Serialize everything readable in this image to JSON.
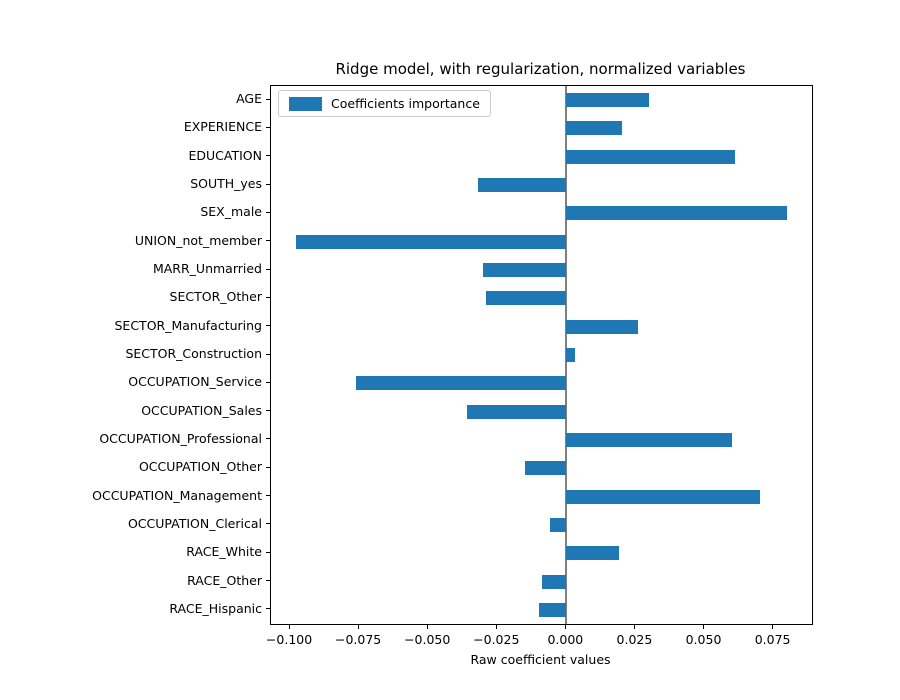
{
  "chart_data": {
    "type": "bar",
    "orientation": "horizontal",
    "title": "Ridge model, with regularization, normalized variables",
    "xlabel": "Raw coefficient values",
    "legend": {
      "label": "Coefficients importance",
      "position": "upper left"
    },
    "categories": [
      "AGE",
      "EXPERIENCE",
      "EDUCATION",
      "SOUTH_yes",
      "SEX_male",
      "UNION_not_member",
      "MARR_Unmarried",
      "SECTOR_Other",
      "SECTOR_Manufacturing",
      "SECTOR_Construction",
      "OCCUPATION_Service",
      "OCCUPATION_Sales",
      "OCCUPATION_Professional",
      "OCCUPATION_Other",
      "OCCUPATION_Management",
      "OCCUPATION_Clerical",
      "RACE_White",
      "RACE_Other",
      "RACE_Hispanic"
    ],
    "values": [
      0.03,
      0.02,
      0.061,
      -0.032,
      0.08,
      -0.098,
      -0.03,
      -0.029,
      0.026,
      0.003,
      -0.076,
      -0.036,
      0.06,
      -0.015,
      0.07,
      -0.006,
      0.019,
      -0.009,
      -0.01
    ],
    "xlim": [
      -0.1069,
      0.0889
    ],
    "xticks": [
      -0.1,
      -0.075,
      -0.05,
      -0.025,
      0.0,
      0.025,
      0.05,
      0.075
    ],
    "xtick_labels": [
      "−0.100",
      "−0.075",
      "−0.050",
      "−0.025",
      "0.000",
      "0.025",
      "0.050",
      "0.075"
    ],
    "grid": false,
    "colors": {
      "bar": "#1f77b4",
      "zero_line": "#808080",
      "spine": "#000000",
      "legend_border": "#cccccc",
      "background": "#ffffff"
    }
  }
}
